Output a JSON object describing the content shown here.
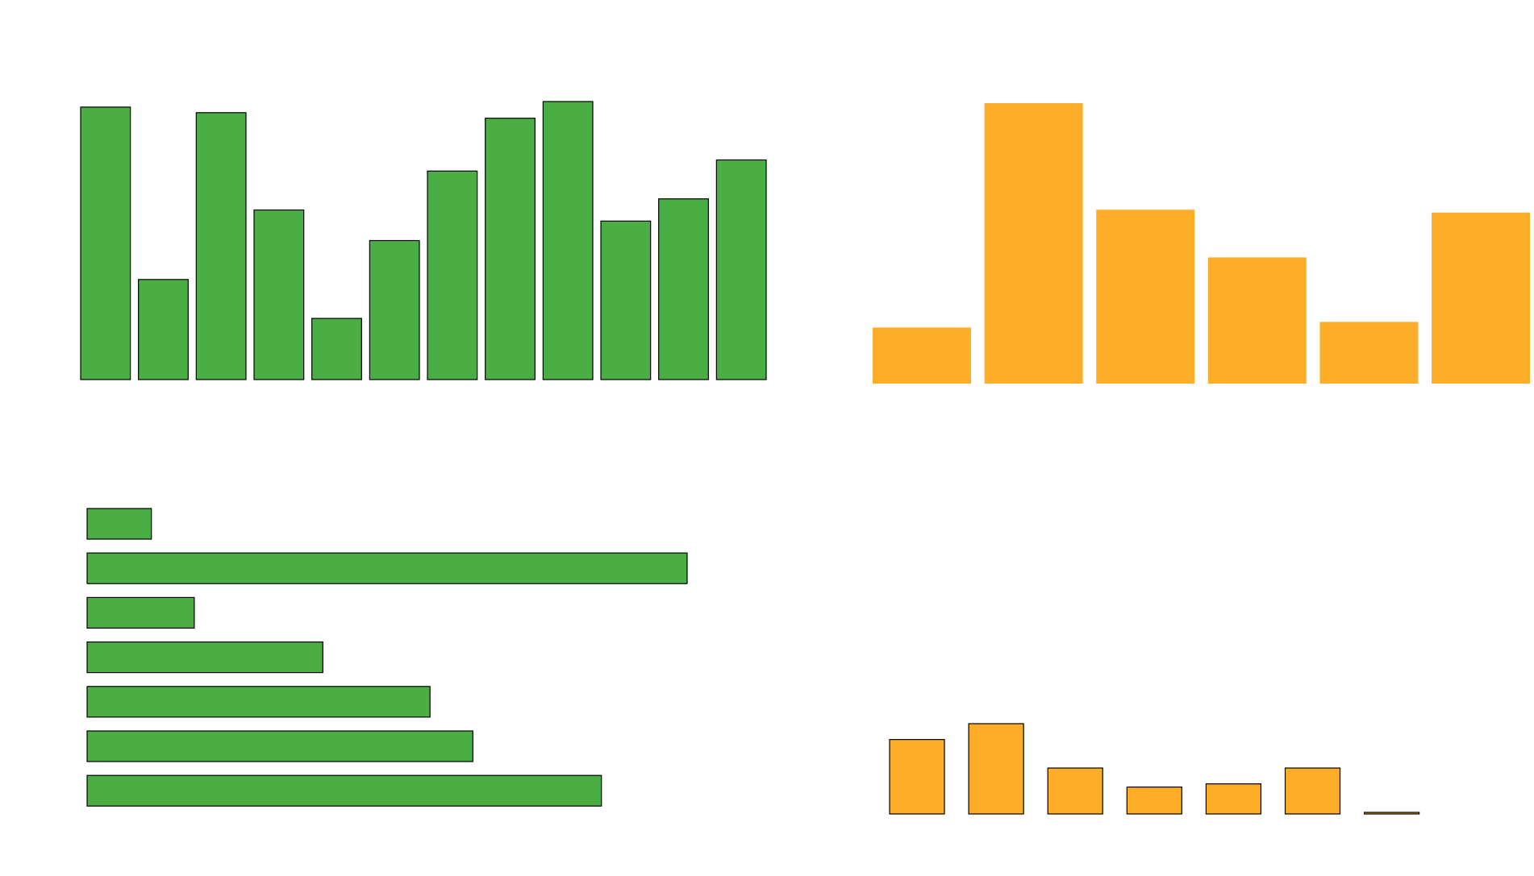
{
  "colors": {
    "green": "#4bae45",
    "orange": "#fdad28",
    "stroke": "#000000",
    "background": "#ffffff"
  },
  "chart_data": [
    {
      "type": "bar",
      "orientation": "vertical",
      "color": "#4bae45",
      "outlined": true,
      "values": [
        98,
        36,
        96,
        61,
        22,
        50,
        75,
        94,
        100,
        57,
        65,
        79
      ],
      "ylim": [
        0,
        100
      ]
    },
    {
      "type": "bar",
      "orientation": "vertical",
      "color": "#fdad28",
      "outlined": false,
      "values": [
        20,
        100,
        62,
        45,
        22,
        61
      ],
      "ylim": [
        0,
        100
      ]
    },
    {
      "type": "bar",
      "orientation": "horizontal",
      "color": "#4bae45",
      "outlined": true,
      "values": [
        15,
        140,
        25,
        55,
        80,
        90,
        120
      ],
      "xlim": [
        0,
        140
      ]
    },
    {
      "type": "bar",
      "orientation": "vertical",
      "color": "#fdad28",
      "outlined": true,
      "values": [
        47,
        57,
        29,
        17,
        19,
        29,
        1
      ],
      "ylim": [
        0,
        57
      ]
    }
  ]
}
